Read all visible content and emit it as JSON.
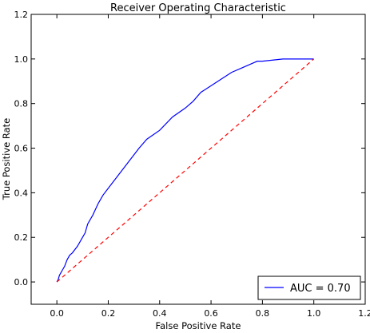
{
  "chart_data": {
    "type": "line",
    "title": "Receiver Operating Characteristic",
    "xlabel": "False Positive Rate",
    "ylabel": "True Positive Rate",
    "xlim": [
      -0.1,
      1.2
    ],
    "ylim": [
      -0.1,
      1.2
    ],
    "xticks": [
      "0.0",
      "0.2",
      "0.4",
      "0.6",
      "0.8",
      "1.0",
      "1.2"
    ],
    "yticks": [
      "0.0",
      "0.2",
      "0.4",
      "0.6",
      "0.8",
      "1.0",
      "1.2"
    ],
    "grid": false,
    "legend_position": "lower right",
    "series": [
      {
        "name": "AUC = 0.70",
        "color": "#0000ff",
        "style": "solid",
        "x": [
          0.0,
          0.005,
          0.01,
          0.015,
          0.02,
          0.03,
          0.04,
          0.05,
          0.06,
          0.08,
          0.1,
          0.11,
          0.12,
          0.14,
          0.16,
          0.18,
          0.2,
          0.22,
          0.24,
          0.26,
          0.28,
          0.3,
          0.32,
          0.35,
          0.4,
          0.45,
          0.5,
          0.53,
          0.56,
          0.6,
          0.64,
          0.68,
          0.72,
          0.76,
          0.78,
          0.8,
          0.84,
          0.88,
          0.92,
          0.96,
          1.0
        ],
        "y": [
          0.0,
          0.01,
          0.03,
          0.04,
          0.05,
          0.07,
          0.1,
          0.12,
          0.13,
          0.16,
          0.2,
          0.22,
          0.26,
          0.3,
          0.35,
          0.39,
          0.42,
          0.45,
          0.48,
          0.51,
          0.54,
          0.57,
          0.6,
          0.64,
          0.68,
          0.74,
          0.78,
          0.81,
          0.85,
          0.88,
          0.91,
          0.94,
          0.96,
          0.98,
          0.99,
          0.99,
          0.995,
          1.0,
          1.0,
          1.0,
          1.0
        ]
      },
      {
        "name": "",
        "color": "#ff0000",
        "style": "dashed",
        "x": [
          0.0,
          1.0
        ],
        "y": [
          0.0,
          1.0
        ]
      }
    ]
  }
}
